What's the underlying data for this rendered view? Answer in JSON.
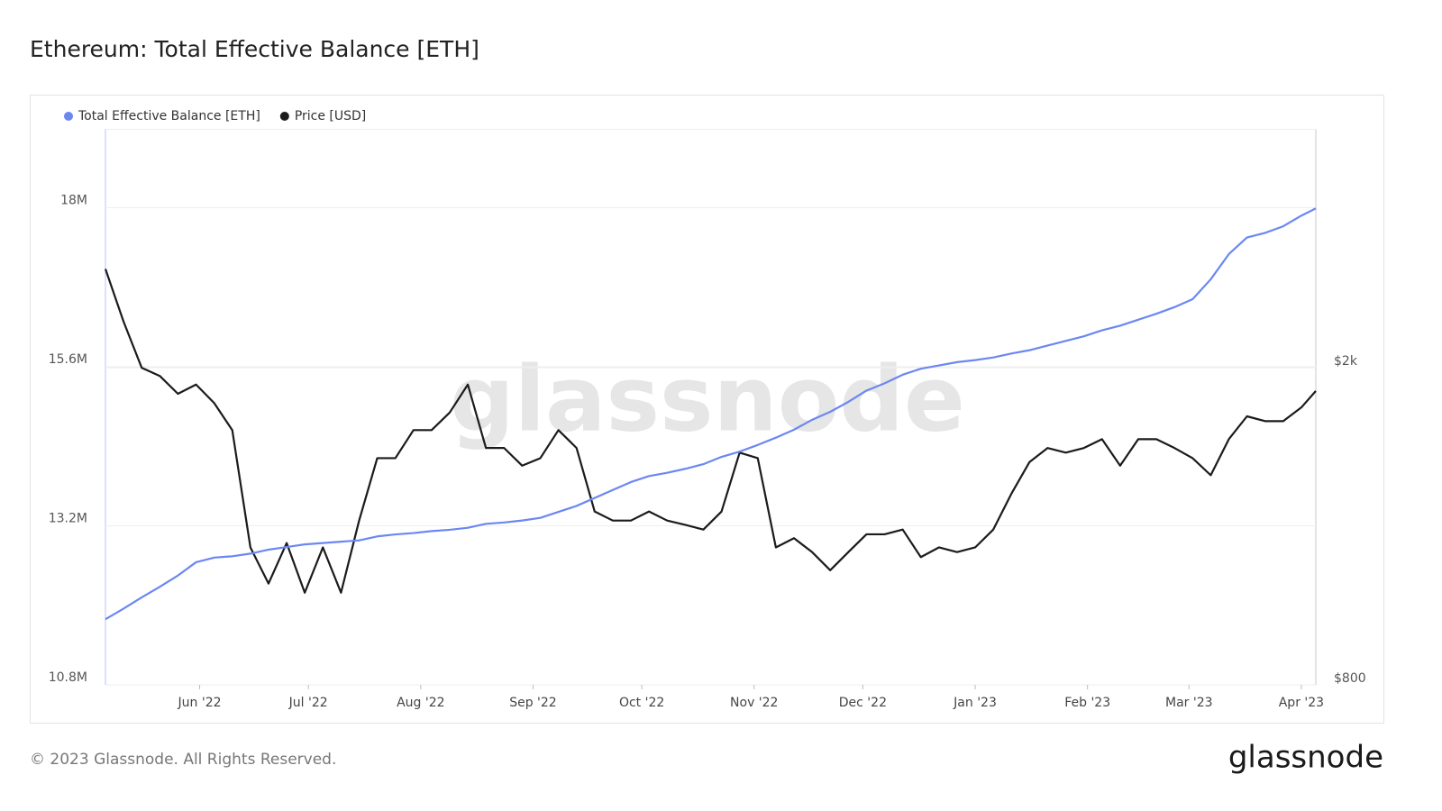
{
  "chart_data": {
    "type": "line",
    "title": "Ethereum: Total Effective Balance [ETH]",
    "watermark": "glassnode",
    "x": [
      "2022-05-06",
      "2022-05-11",
      "2022-05-16",
      "2022-05-21",
      "2022-05-26",
      "2022-05-31",
      "2022-06-05",
      "2022-06-10",
      "2022-06-15",
      "2022-06-20",
      "2022-06-25",
      "2022-06-30",
      "2022-07-05",
      "2022-07-10",
      "2022-07-15",
      "2022-07-20",
      "2022-07-25",
      "2022-07-30",
      "2022-08-04",
      "2022-08-09",
      "2022-08-14",
      "2022-08-19",
      "2022-08-24",
      "2022-08-29",
      "2022-09-03",
      "2022-09-08",
      "2022-09-13",
      "2022-09-18",
      "2022-09-23",
      "2022-09-28",
      "2022-10-03",
      "2022-10-08",
      "2022-10-13",
      "2022-10-18",
      "2022-10-23",
      "2022-10-28",
      "2022-11-02",
      "2022-11-07",
      "2022-11-12",
      "2022-11-17",
      "2022-11-22",
      "2022-11-27",
      "2022-12-02",
      "2022-12-07",
      "2022-12-12",
      "2022-12-17",
      "2022-12-22",
      "2022-12-27",
      "2023-01-01",
      "2023-01-06",
      "2023-01-11",
      "2023-01-16",
      "2023-01-21",
      "2023-01-26",
      "2023-01-31",
      "2023-02-05",
      "2023-02-10",
      "2023-02-15",
      "2023-02-20",
      "2023-02-25",
      "2023-03-02",
      "2023-03-07",
      "2023-03-12",
      "2023-03-17",
      "2023-03-22",
      "2023-03-27",
      "2023-04-01",
      "2023-04-05"
    ],
    "xlim": [
      "2022-05-06",
      "2023-04-05"
    ],
    "xticks": [
      {
        "value": "2022-06",
        "label": "Jun '22"
      },
      {
        "value": "2022-07",
        "label": "Jul '22"
      },
      {
        "value": "2022-08",
        "label": "Aug '22"
      },
      {
        "value": "2022-09",
        "label": "Sep '22"
      },
      {
        "value": "2022-10",
        "label": "Oct '22"
      },
      {
        "value": "2022-11",
        "label": "Nov '22"
      },
      {
        "value": "2022-12",
        "label": "Dec '22"
      },
      {
        "value": "2023-01",
        "label": "Jan '23"
      },
      {
        "value": "2023-02",
        "label": "Feb '23"
      },
      {
        "value": "2023-03",
        "label": "Mar '23"
      },
      {
        "value": "2023-04",
        "label": "Apr '23"
      }
    ],
    "ylim": [
      10800000,
      19190000
    ],
    "yticks": [
      {
        "value": 10800000,
        "label": "10.8M"
      },
      {
        "value": 13200000,
        "label": "13.2M"
      },
      {
        "value": 15600000,
        "label": "15.6M"
      },
      {
        "value": 18000000,
        "label": "18M"
      }
    ],
    "y2lim": [
      800,
      3988
    ],
    "y2ticks": [
      {
        "value": 800,
        "label": "$800"
      },
      {
        "value": 2000,
        "label": "$2k"
      }
    ],
    "y2_log": true,
    "grid": true,
    "legend": "top-left",
    "series": [
      {
        "name": "Total Effective Balance [ETH]",
        "color": "#6b87f2",
        "axis": "y",
        "values": [
          11790000,
          11950000,
          12120000,
          12280000,
          12450000,
          12650000,
          12720000,
          12740000,
          12780000,
          12840000,
          12880000,
          12920000,
          12940000,
          12960000,
          12980000,
          13040000,
          13070000,
          13090000,
          13120000,
          13140000,
          13170000,
          13230000,
          13250000,
          13280000,
          13320000,
          13410000,
          13500000,
          13620000,
          13740000,
          13860000,
          13950000,
          14000000,
          14060000,
          14130000,
          14240000,
          14320000,
          14420000,
          14530000,
          14650000,
          14800000,
          14920000,
          15070000,
          15240000,
          15350000,
          15480000,
          15570000,
          15620000,
          15670000,
          15700000,
          15740000,
          15800000,
          15850000,
          15920000,
          15990000,
          16060000,
          16150000,
          16220000,
          16310000,
          16400000,
          16500000,
          16620000,
          16920000,
          17300000,
          17550000,
          17620000,
          17720000,
          17880000,
          17990000
        ]
      },
      {
        "name": "Price [USD]",
        "color": "#1b1b1b",
        "axis": "y2",
        "values": [
          2660,
          2285,
          2000,
          1953,
          1855,
          1905,
          1806,
          1670,
          1190,
          1072,
          1205,
          1044,
          1190,
          1044,
          1286,
          1540,
          1540,
          1670,
          1670,
          1757,
          1905,
          1586,
          1586,
          1507,
          1540,
          1670,
          1586,
          1320,
          1286,
          1286,
          1320,
          1286,
          1270,
          1253,
          1320,
          1565,
          1540,
          1190,
          1222,
          1174,
          1114,
          1174,
          1236,
          1236,
          1253,
          1157,
          1190,
          1174,
          1190,
          1253,
          1390,
          1523,
          1586,
          1565,
          1586,
          1627,
          1507,
          1627,
          1627,
          1586,
          1540,
          1466,
          1627,
          1738,
          1714,
          1714,
          1783,
          1870
        ]
      }
    ]
  },
  "footer": {
    "copyright": "© 2023 Glassnode. All Rights Reserved.",
    "logo": "glassnode"
  }
}
